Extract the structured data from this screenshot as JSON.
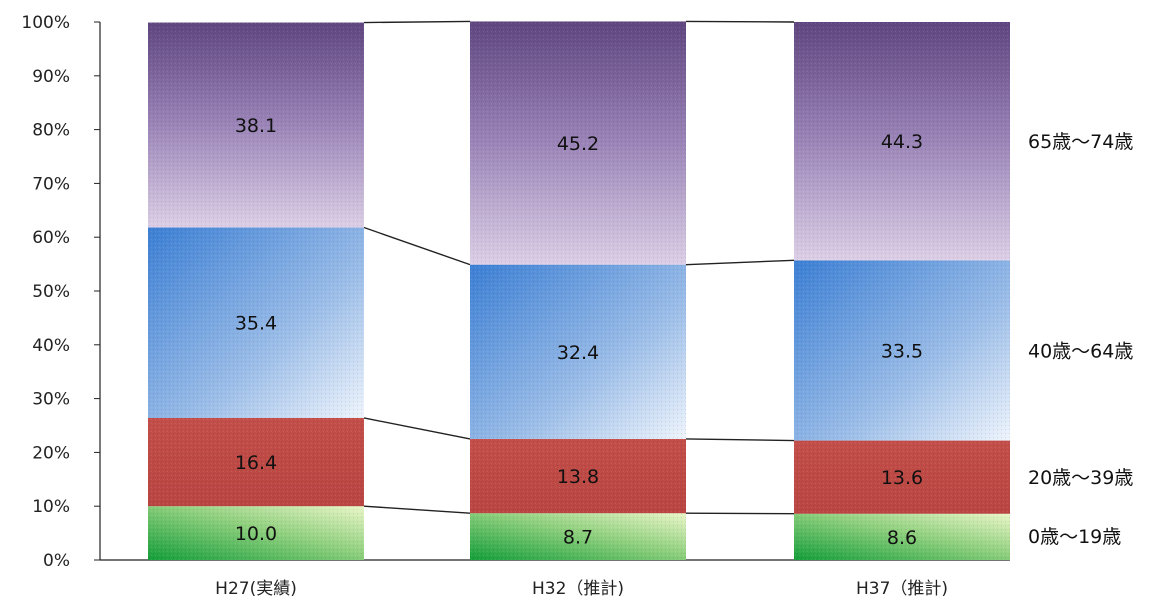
{
  "chart_data": {
    "type": "bar",
    "stacked": true,
    "percent": true,
    "categories": [
      "H27(実績)",
      "H32（推計)",
      "H37（推計)"
    ],
    "series": [
      {
        "name": "0歳～19歳",
        "values": [
          10.0,
          8.7,
          8.6
        ],
        "color": "#3fb64f"
      },
      {
        "name": "20歳～39歳",
        "values": [
          16.4,
          13.8,
          13.6
        ],
        "color": "#c0504d"
      },
      {
        "name": "40歳～64歳",
        "values": [
          35.4,
          32.4,
          33.5
        ],
        "color": "#5b8fd6"
      },
      {
        "name": "65歳～74歳",
        "values": [
          38.1,
          45.2,
          44.3
        ],
        "color": "#8064a2"
      }
    ],
    "value_labels": [
      [
        "10.0",
        "8.7",
        "8.6"
      ],
      [
        "16.4",
        "13.8",
        "13.6"
      ],
      [
        "35.4",
        "32.4",
        "33.5"
      ],
      [
        "38.1",
        "45.2",
        "44.3"
      ]
    ],
    "yticks": [
      "0%",
      "10%",
      "20%",
      "30%",
      "40%",
      "50%",
      "60%",
      "70%",
      "80%",
      "90%",
      "100%"
    ],
    "ylim": [
      0,
      100
    ],
    "series_lines": true,
    "legend": "right",
    "grid": false
  }
}
